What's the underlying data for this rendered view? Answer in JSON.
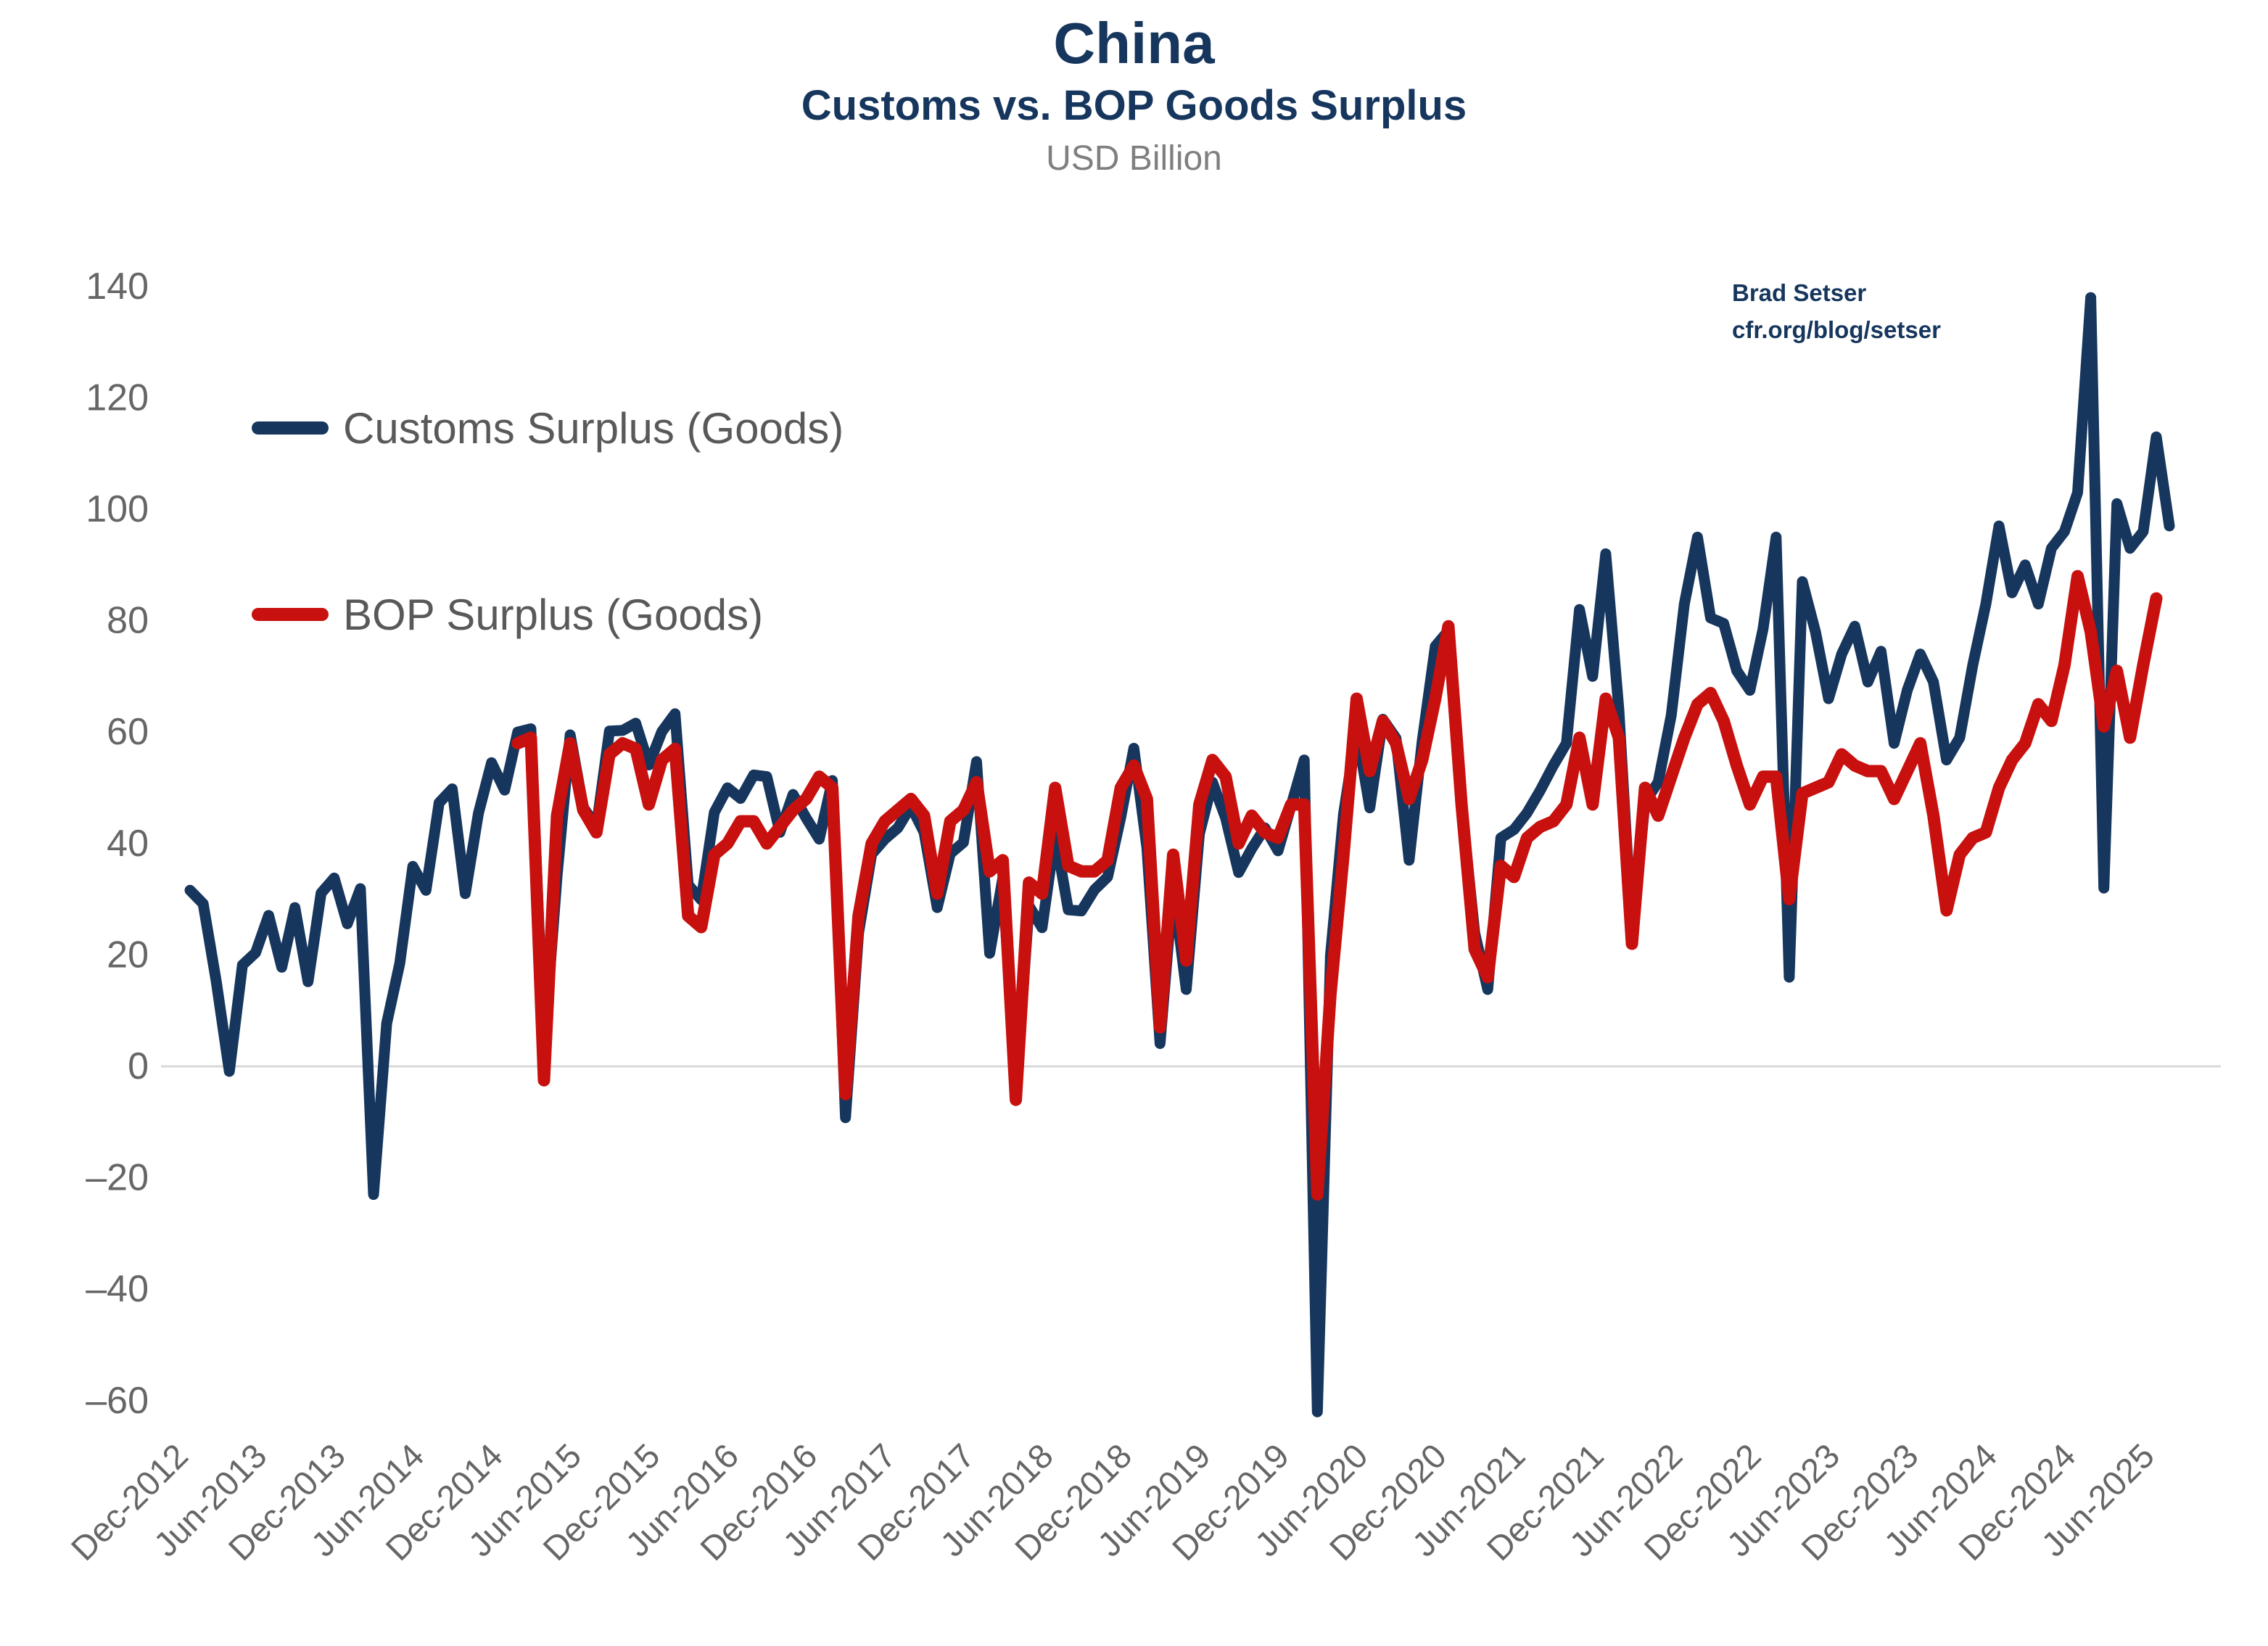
{
  "title": "China",
  "subtitle": "Customs vs. BOP Goods Surplus",
  "unit_label": "USD Billion",
  "attribution": {
    "line1": "Brad Setser",
    "line2": "cfr.org/blog/setser"
  },
  "colors": {
    "navy": "#16365d",
    "red": "#c8100e",
    "axis_text": "#666666",
    "legend_text": "#595959",
    "gridline": "#d9d9d9",
    "subtitle_gray": "#7f7f7f"
  },
  "chart_data": {
    "type": "line",
    "title": "China",
    "subtitle": "Customs vs. BOP Goods Surplus",
    "ylabel": "USD Billion",
    "ylim": [
      -60,
      140
    ],
    "ytick_step": 20,
    "grid": "zero-line-only",
    "legend_position": "upper-left-inside",
    "x_start_month": "Dec-2012",
    "x_frequency": "monthly",
    "x_tick_labels": [
      "Dec-2012",
      "Jun-2013",
      "Dec-2013",
      "Jun-2014",
      "Dec-2014",
      "Jun-2015",
      "Dec-2015",
      "Jun-2016",
      "Dec-2016",
      "Jun-2017",
      "Dec-2017",
      "Jun-2018",
      "Dec-2018",
      "Jun-2019",
      "Dec-2019",
      "Jun-2020",
      "Dec-2020",
      "Jun-2021",
      "Dec-2021",
      "Jun-2022",
      "Dec-2022",
      "Jun-2023",
      "Dec-2023",
      "Jun-2024",
      "Dec-2024",
      "Jun-2025"
    ],
    "x_tick_interval_months": 6,
    "series": [
      {
        "name": "Customs Surplus (Goods)",
        "color": "#16365d",
        "start_month": "Dec-2012",
        "start_index": 0,
        "values": [
          31.6,
          29.2,
          15.3,
          -0.9,
          18.2,
          20.4,
          27.1,
          17.8,
          28.5,
          15.2,
          31.1,
          33.8,
          25.6,
          31.9,
          -23.0,
          7.7,
          18.5,
          35.9,
          31.6,
          47.3,
          49.8,
          31.0,
          45.4,
          54.5,
          49.6,
          60.0,
          60.6,
          3.1,
          34.1,
          59.5,
          46.5,
          43.0,
          60.2,
          60.3,
          61.6,
          54.1,
          60.1,
          63.3,
          32.6,
          29.9,
          45.6,
          50.0,
          48.1,
          52.3,
          52.0,
          42.0,
          48.8,
          44.6,
          40.8,
          51.3,
          -9.2,
          23.9,
          38.1,
          40.8,
          42.8,
          46.7,
          42.0,
          28.5,
          38.2,
          40.2,
          54.7,
          20.3,
          33.7,
          -5.0,
          28.8,
          24.9,
          41.6,
          28.1,
          27.9,
          31.7,
          34.0,
          44.7,
          57.1,
          39.2,
          4.1,
          32.6,
          13.8,
          41.7,
          51.0,
          44.6,
          34.8,
          39.1,
          42.8,
          38.7,
          46.8,
          55.0,
          -62.0,
          19.9,
          45.3,
          60.5,
          46.4,
          62.3,
          58.9,
          37.0,
          58.4,
          75.4,
          78.2,
          47.0,
          24.0,
          13.8,
          41.0,
          42.5,
          45.5,
          49.5,
          54.0,
          58.0,
          82.0,
          70.0,
          92.0,
          64.0,
          24.0,
          47.5,
          51.0,
          63.0,
          83.0,
          95.0,
          80.5,
          79.5,
          71.0,
          67.5,
          78.5,
          95.0,
          16.0,
          87.0,
          78.0,
          66.0,
          74.0,
          79.0,
          69.0,
          74.5,
          58.0,
          67.5,
          74.0,
          69.0,
          55.0,
          59.0,
          72.0,
          83.0,
          97.0,
          85.0,
          90.0,
          83.0,
          93.0,
          96.0,
          103.0,
          138.0,
          32.0,
          101.0,
          93.0,
          96.0,
          113.0,
          97.0
        ]
      },
      {
        "name": "BOP Surplus (Goods)",
        "color": "#c8100e",
        "start_month": "Jan-2015",
        "start_index": 25,
        "values": [
          58,
          59,
          -2.5,
          45,
          58,
          46,
          42,
          56,
          58,
          57,
          47,
          55,
          57,
          27,
          25,
          38,
          40,
          44,
          44,
          40,
          43,
          46,
          48,
          52,
          50,
          -5,
          27,
          40,
          44,
          46,
          48,
          45,
          31,
          44,
          46,
          51,
          35,
          37,
          -6,
          33,
          31,
          50,
          36,
          35,
          35,
          37,
          50,
          54,
          48,
          7,
          38,
          19,
          47,
          55,
          52,
          40,
          45,
          42,
          41,
          47,
          47,
          -23,
          13,
          38,
          66,
          53,
          62,
          58,
          48,
          55,
          66,
          79,
          47,
          21,
          16,
          36,
          34,
          41,
          43,
          44,
          47,
          59,
          47,
          66,
          59,
          22,
          50,
          45,
          52,
          59,
          65,
          67,
          62,
          54,
          47,
          52,
          52,
          30,
          49,
          50,
          51,
          56,
          54,
          53,
          53,
          48,
          53,
          58,
          45,
          28,
          38,
          41,
          42,
          50,
          55,
          58,
          65,
          62,
          72,
          88,
          78,
          61,
          71,
          59,
          72,
          84
        ]
      }
    ]
  }
}
